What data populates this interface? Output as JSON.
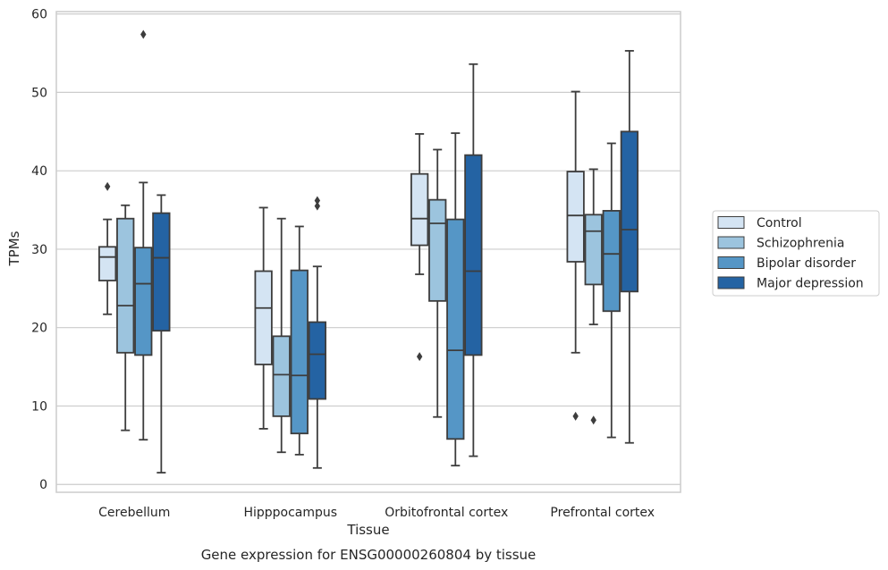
{
  "chart_data": {
    "type": "box",
    "title": "",
    "caption": "Gene expression for ENSG00000260804 by tissue",
    "xlabel": "Tissue",
    "ylabel": "TPMs",
    "ylim": [
      -1,
      60.3
    ],
    "yticks": [
      "0",
      "10",
      "20",
      "30",
      "40",
      "50",
      "60"
    ],
    "grid": true,
    "legend_position": "right",
    "categories": [
      "Cerebellum",
      "Hipppocampus",
      "Orbitofrontal cortex",
      "Prefrontal cortex"
    ],
    "series": [
      {
        "name": "Control",
        "color": "#d4e4f3",
        "boxes": [
          {
            "whislo": 21.7,
            "q1": 26.0,
            "med": 29.0,
            "q3": 30.3,
            "whishi": 33.8,
            "fliers": [
              38.0
            ]
          },
          {
            "whislo": 7.1,
            "q1": 15.3,
            "med": 22.5,
            "q3": 27.2,
            "whishi": 35.3,
            "fliers": []
          },
          {
            "whislo": 26.8,
            "q1": 30.5,
            "med": 33.9,
            "q3": 39.6,
            "whishi": 44.7,
            "fliers": [
              16.3
            ]
          },
          {
            "whislo": 16.8,
            "q1": 28.4,
            "med": 34.3,
            "q3": 39.9,
            "whishi": 50.1,
            "fliers": [
              8.7
            ]
          }
        ]
      },
      {
        "name": "Schizophrenia",
        "color": "#9cc4de",
        "boxes": [
          {
            "whislo": 6.9,
            "q1": 16.8,
            "med": 22.8,
            "q3": 33.9,
            "whishi": 35.6,
            "fliers": []
          },
          {
            "whislo": 4.1,
            "q1": 8.7,
            "med": 14.0,
            "q3": 18.9,
            "whishi": 33.9,
            "fliers": []
          },
          {
            "whislo": 8.6,
            "q1": 23.4,
            "med": 33.3,
            "q3": 36.3,
            "whishi": 42.7,
            "fliers": []
          },
          {
            "whislo": 20.4,
            "q1": 25.5,
            "med": 32.3,
            "q3": 34.4,
            "whishi": 40.2,
            "fliers": [
              8.2
            ]
          }
        ]
      },
      {
        "name": "Bipolar disorder",
        "color": "#5596c6",
        "boxes": [
          {
            "whislo": 5.7,
            "q1": 16.5,
            "med": 25.6,
            "q3": 30.2,
            "whishi": 38.5,
            "fliers": [
              57.4
            ]
          },
          {
            "whislo": 3.8,
            "q1": 6.5,
            "med": 13.9,
            "q3": 27.3,
            "whishi": 32.9,
            "fliers": []
          },
          {
            "whislo": 2.4,
            "q1": 5.8,
            "med": 17.1,
            "q3": 33.8,
            "whishi": 44.8,
            "fliers": []
          },
          {
            "whislo": 6.0,
            "q1": 22.1,
            "med": 29.4,
            "q3": 34.9,
            "whishi": 43.5,
            "fliers": []
          }
        ]
      },
      {
        "name": "Major depression",
        "color": "#2463a3",
        "boxes": [
          {
            "whislo": 1.5,
            "q1": 19.6,
            "med": 28.9,
            "q3": 34.6,
            "whishi": 36.9,
            "fliers": []
          },
          {
            "whislo": 2.1,
            "q1": 10.9,
            "med": 16.6,
            "q3": 20.7,
            "whishi": 27.8,
            "fliers": [
              35.5,
              36.2
            ]
          },
          {
            "whislo": 3.6,
            "q1": 16.5,
            "med": 27.2,
            "q3": 42.0,
            "whishi": 53.6,
            "fliers": []
          },
          {
            "whislo": 5.3,
            "q1": 24.6,
            "med": 32.5,
            "q3": 45.0,
            "whishi": 55.3,
            "fliers": []
          }
        ]
      }
    ]
  }
}
